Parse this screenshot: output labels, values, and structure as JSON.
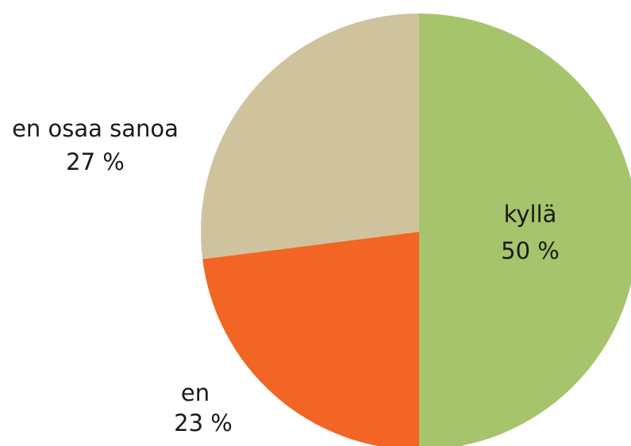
{
  "chart_data": {
    "type": "pie",
    "categories": [
      "kyllä",
      "en",
      "en osaa sanoa"
    ],
    "values": [
      50,
      23,
      27
    ],
    "value_labels": [
      "50 %",
      "23 %",
      "27 %"
    ],
    "colors": [
      "#a5c46b",
      "#f26524",
      "#cfc39e"
    ]
  }
}
